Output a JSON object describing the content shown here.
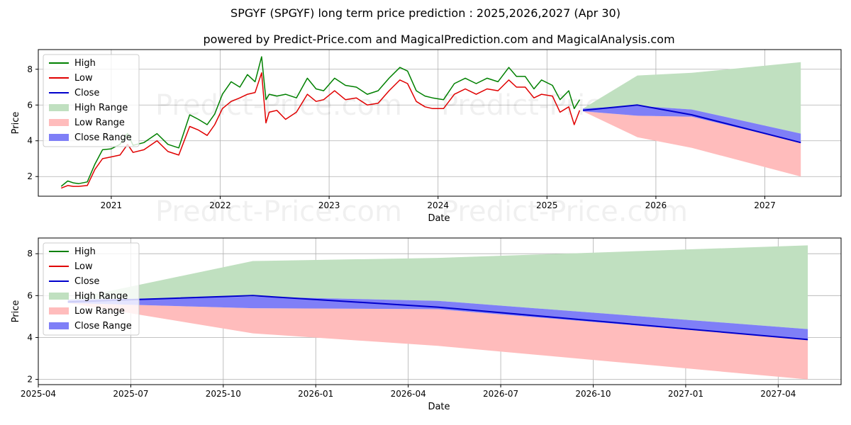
{
  "title": "SPGYF (SPGYF) long term price prediction : 2025,2026,2027 (Apr 30)",
  "subtitle": "powered by Predict-Price.com and MagicalPrediction.com and MagicalAnalysis.com",
  "watermark": "Predict-Price.com",
  "colors": {
    "high": "#008000",
    "low": "#e00000",
    "close": "#0000cc",
    "high_range": "#c0e0c0",
    "low_range": "#ffbcbc",
    "close_range": "#7f7ff7"
  },
  "legend": [
    "High",
    "Low",
    "Close",
    "High Range",
    "Low Range",
    "Close Range"
  ],
  "chart_data": [
    {
      "type": "line",
      "xlabel": "Date",
      "ylabel": "Price",
      "xlim": [
        2020.33,
        2027.7
      ],
      "ylim": [
        0.9,
        9.1
      ],
      "x_ticks": [
        2021,
        2022,
        2023,
        2024,
        2025,
        2026,
        2027
      ],
      "x_tick_labels": [
        "2021",
        "2022",
        "2023",
        "2024",
        "2025",
        "2026",
        "2027"
      ],
      "y_ticks": [
        2,
        4,
        6,
        8
      ],
      "grid": true,
      "legend_position": "top-left",
      "history": {
        "x": [
          2020.54,
          2020.6,
          2020.65,
          2020.7,
          2020.78,
          2020.85,
          2020.92,
          2021.0,
          2021.08,
          2021.15,
          2021.2,
          2021.3,
          2021.42,
          2021.52,
          2021.62,
          2021.72,
          2021.8,
          2021.88,
          2021.95,
          2022.02,
          2022.1,
          2022.18,
          2022.25,
          2022.32,
          2022.38,
          2022.42,
          2022.45,
          2022.52,
          2022.6,
          2022.7,
          2022.8,
          2022.88,
          2022.95,
          2023.05,
          2023.15,
          2023.25,
          2023.35,
          2023.45,
          2023.55,
          2023.65,
          2023.72,
          2023.8,
          2023.88,
          2023.95,
          2024.05,
          2024.15,
          2024.25,
          2024.35,
          2024.45,
          2024.55,
          2024.65,
          2024.72,
          2024.8,
          2024.88,
          2024.95,
          2025.05,
          2025.12,
          2025.2,
          2025.25,
          2025.3
        ],
        "high": [
          1.45,
          1.75,
          1.65,
          1.6,
          1.7,
          2.7,
          3.5,
          3.55,
          3.8,
          4.4,
          3.75,
          3.9,
          4.4,
          3.8,
          3.6,
          5.45,
          5.2,
          4.9,
          5.5,
          6.6,
          7.3,
          7.0,
          7.7,
          7.3,
          8.7,
          6.3,
          6.6,
          6.5,
          6.6,
          6.4,
          7.5,
          6.9,
          6.8,
          7.5,
          7.1,
          7.0,
          6.6,
          6.8,
          7.5,
          8.1,
          7.9,
          6.8,
          6.5,
          6.4,
          6.3,
          7.2,
          7.5,
          7.2,
          7.5,
          7.3,
          8.1,
          7.6,
          7.6,
          6.9,
          7.4,
          7.1,
          6.3,
          6.8,
          5.8,
          6.3
        ],
        "low": [
          1.35,
          1.5,
          1.45,
          1.45,
          1.5,
          2.4,
          3.0,
          3.1,
          3.2,
          3.8,
          3.35,
          3.5,
          4.0,
          3.4,
          3.2,
          4.8,
          4.6,
          4.3,
          4.9,
          5.8,
          6.2,
          6.4,
          6.6,
          6.7,
          7.8,
          5.0,
          5.6,
          5.7,
          5.2,
          5.6,
          6.6,
          6.2,
          6.3,
          6.8,
          6.3,
          6.4,
          6.0,
          6.1,
          6.8,
          7.4,
          7.2,
          6.2,
          5.9,
          5.8,
          5.8,
          6.6,
          6.9,
          6.6,
          6.9,
          6.8,
          7.4,
          7.0,
          7.0,
          6.4,
          6.6,
          6.5,
          5.6,
          5.9,
          4.9,
          5.7
        ]
      },
      "forecast": {
        "x": [
          2025.33,
          2025.83,
          2026.33,
          2027.33
        ],
        "close": [
          5.7,
          6.0,
          5.45,
          3.9
        ],
        "high_range": [
          5.8,
          7.65,
          7.8,
          8.4
        ],
        "low_range": [
          5.65,
          4.2,
          3.6,
          2.0
        ],
        "close_range_high": [
          5.8,
          5.95,
          5.75,
          4.4
        ],
        "close_range_low": [
          5.65,
          5.4,
          5.35,
          3.9
        ]
      }
    },
    {
      "type": "line",
      "xlabel": "Date",
      "ylabel": "Price",
      "xlim": [
        2025.25,
        2027.42
      ],
      "ylim": [
        1.75,
        8.75
      ],
      "x_ticks": [
        2025.25,
        2025.5,
        2025.75,
        2026.0,
        2026.25,
        2026.5,
        2026.75,
        2027.0,
        2027.25
      ],
      "x_tick_labels": [
        "2025-04",
        "2025-07",
        "2025-10",
        "2026-01",
        "2026-04",
        "2026-07",
        "2026-10",
        "2027-01",
        "2027-04"
      ],
      "y_ticks": [
        2,
        4,
        6,
        8
      ],
      "grid": true,
      "legend_position": "top-left",
      "forecast": {
        "x": [
          2025.33,
          2025.83,
          2026.33,
          2027.33
        ],
        "close": [
          5.7,
          6.0,
          5.45,
          3.9
        ],
        "high_range": [
          5.8,
          7.65,
          7.8,
          8.4
        ],
        "low_range": [
          5.65,
          4.2,
          3.6,
          2.0
        ],
        "close_range_high": [
          5.8,
          5.95,
          5.75,
          4.4
        ],
        "close_range_low": [
          5.65,
          5.4,
          5.35,
          3.9
        ]
      }
    }
  ]
}
